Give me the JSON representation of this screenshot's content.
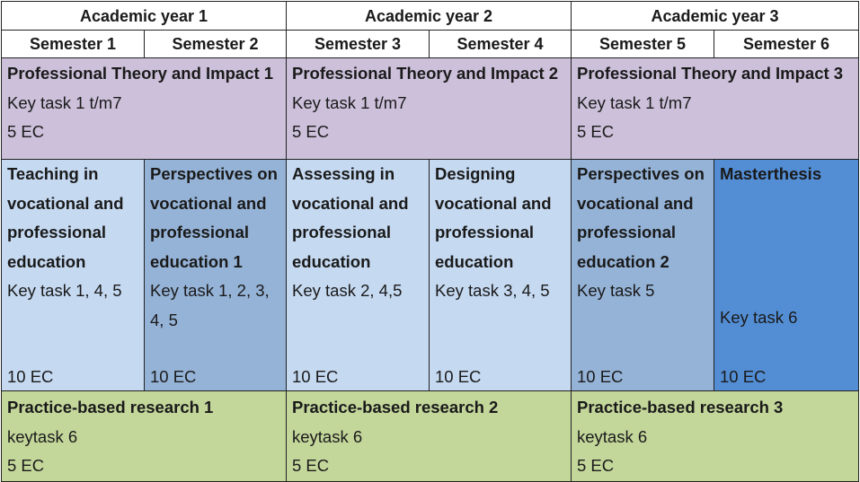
{
  "years": [
    {
      "label": "Academic year 1"
    },
    {
      "label": "Academic year 2"
    },
    {
      "label": "Academic year 3"
    }
  ],
  "semesters": [
    "Semester 1",
    "Semester 2",
    "Semester 3",
    "Semester 4",
    "Semester 5",
    "Semester 6"
  ],
  "theory": [
    {
      "title": "Professional Theory and Impact 1",
      "task": "Key task 1 t/m7",
      "ec": "5 EC"
    },
    {
      "title": "Professional Theory and Impact 2",
      "task": "Key task 1 t/m7",
      "ec": "5 EC"
    },
    {
      "title": "Professional Theory and Impact 3",
      "task": "Key task 1 t/m7",
      "ec": "5 EC"
    }
  ],
  "courses": [
    {
      "title": "Teaching in vocational and professional education",
      "task": "Key task 1, 4, 5",
      "ec": "10 EC",
      "color": "#c5d9f1"
    },
    {
      "title": "Perspectives on vocational and professional education 1",
      "task": "Key task 1, 2, 3, 4, 5",
      "ec": "10 EC",
      "color": "#95b3d7"
    },
    {
      "title": "Assessing in vocational and professional education",
      "task": "Key task 2, 4,5",
      "ec": "10 EC",
      "color": "#c5d9f1"
    },
    {
      "title": "Designing vocational and professional education",
      "task": "Key task 3, 4, 5",
      "ec": "10 EC",
      "color": "#c5d9f1"
    },
    {
      "title": "Perspectives on vocational and professional education 2",
      "task": "Key task 5",
      "ec": "10 EC",
      "color": "#95b3d7"
    },
    {
      "title": "Masterthesis",
      "task": "Key task 6",
      "ec": "10 EC",
      "color": "#538ed5"
    }
  ],
  "research": [
    {
      "title": "Practice-based research 1",
      "task": "keytask 6",
      "ec": "5 EC"
    },
    {
      "title": "Practice-based research 2",
      "task": "keytask 6",
      "ec": "5 EC"
    },
    {
      "title": "Practice-based research 3",
      "task": "keytask 6",
      "ec": "5 EC"
    }
  ],
  "colors": {
    "theory": "#ccc0da",
    "research": "#c4d79b",
    "course_light": "#c5d9f1",
    "course_mid": "#95b3d7",
    "course_dark": "#538ed5"
  }
}
